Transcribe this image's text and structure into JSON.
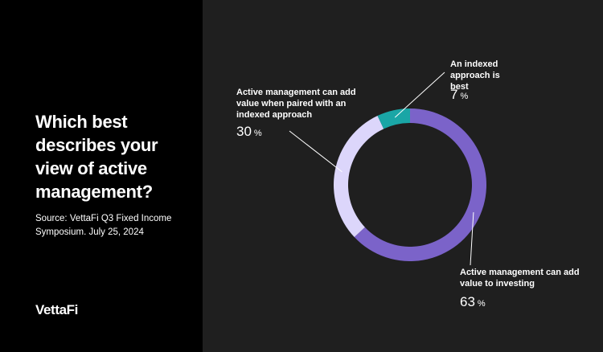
{
  "title": "Which best describes your view of active management?",
  "source": "Source: VettaFi Q3 Fixed Income Symposium. July 25, 2024",
  "logo": "VettaFi",
  "chart_data": {
    "type": "pie",
    "title": "Which best describes your view of active management?",
    "categories": [
      "Active management can add value to investing",
      "Active management can add value when paired with an indexed approach",
      "An indexed approach is best"
    ],
    "values": [
      63,
      30,
      7
    ],
    "value_labels": [
      "63",
      "30",
      "7"
    ],
    "unit": "%",
    "colors": [
      "#7b63c9",
      "#dcd6fb",
      "#1aa6a6"
    ],
    "donut": true
  }
}
